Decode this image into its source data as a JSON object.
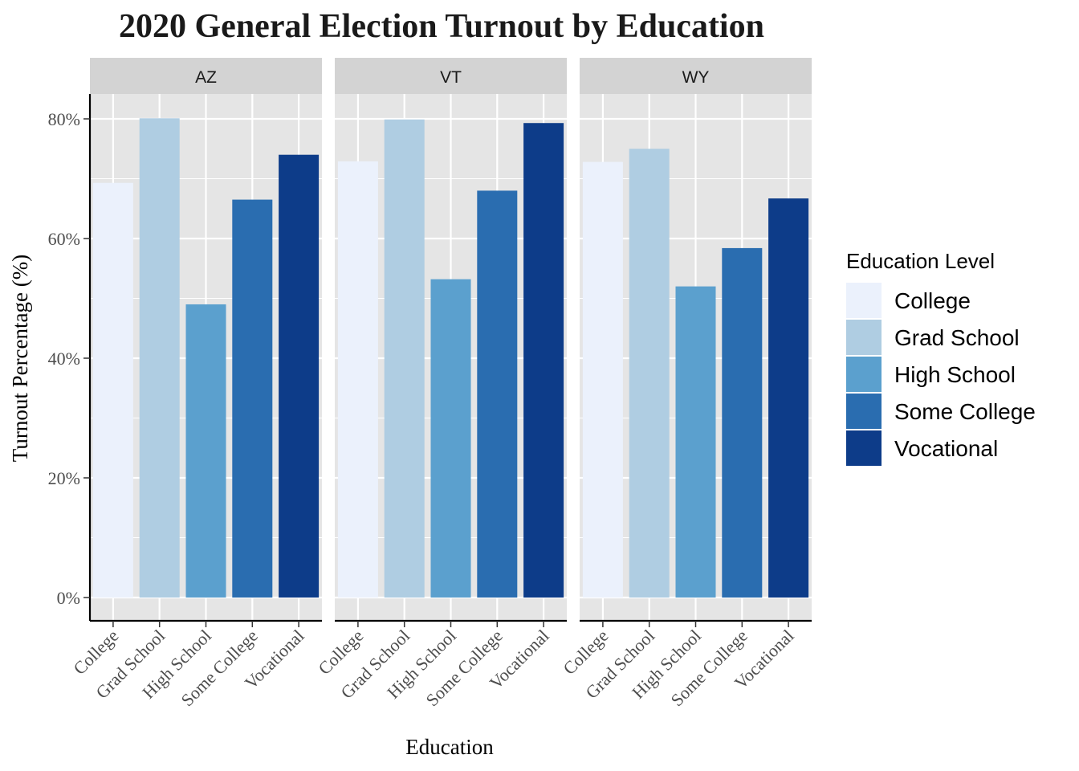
{
  "chart_data": {
    "type": "bar",
    "title": "2020 General Election Turnout by Education",
    "xlabel": "Education",
    "ylabel": "Turnout Percentage (%)",
    "ylim": [
      0,
      0.84
    ],
    "yticks": [
      0,
      0.2,
      0.4,
      0.6,
      0.8
    ],
    "ytick_labels": [
      "0%",
      "20%",
      "40%",
      "60%",
      "80%"
    ],
    "grid": true,
    "legend": {
      "title": "Education Level",
      "position": "right",
      "entries": [
        "College",
        "Grad School",
        "High School",
        "Some College",
        "Vocational"
      ]
    },
    "colors": {
      "College": "#EBF1FC",
      "Grad School": "#AFCDE2",
      "High School": "#5BA0CE",
      "Some College": "#2A6DB0",
      "Vocational": "#0D3C89",
      "panel_background": "#E5E5E5",
      "strip_background": "#D3D3D3"
    },
    "categories": [
      "College",
      "Grad School",
      "High School",
      "Some College",
      "Vocational"
    ],
    "facets": [
      {
        "name": "AZ",
        "values": [
          0.693,
          0.801,
          0.49,
          0.665,
          0.74
        ]
      },
      {
        "name": "VT",
        "values": [
          0.729,
          0.799,
          0.532,
          0.68,
          0.793
        ]
      },
      {
        "name": "WY",
        "values": [
          0.728,
          0.75,
          0.52,
          0.584,
          0.667
        ]
      }
    ]
  }
}
